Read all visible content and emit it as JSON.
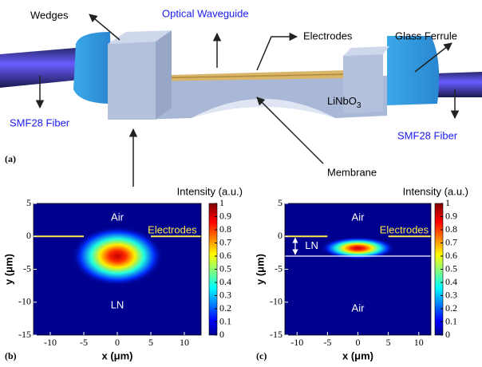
{
  "diagram": {
    "panel": "(a)",
    "labels": {
      "wedges": "Wedges",
      "waveguide": "Optical Waveguide",
      "electrodes": "Electrodes",
      "ferrule": "Glass Ferrule",
      "fiber_left": "SMF28 Fiber",
      "fiber_right": "SMF28 Fiber",
      "substrate": {
        "main": "LiNbO",
        "sub": "3"
      },
      "membrane": "Membrane"
    }
  },
  "chart_data": [
    {
      "type": "heatmap",
      "panel": "(b)",
      "xlabel": "x (μm)",
      "ylabel": "y (μm)",
      "colorbar_label": "Intensity (a.u.)",
      "xlim": [
        -12.5,
        12.5
      ],
      "ylim": [
        -15,
        5
      ],
      "xticks": [
        -10,
        -5,
        0,
        5,
        10
      ],
      "yticks": [
        -15,
        -10,
        -5,
        0,
        5
      ],
      "clim": [
        0,
        1
      ],
      "cticks": [
        0,
        0.1,
        0.2,
        0.3,
        0.4,
        0.5,
        0.6,
        0.7,
        0.8,
        0.9,
        1
      ],
      "annotations": [
        "Air",
        "Electrodes",
        "LN"
      ],
      "electrodes": {
        "y": 0,
        "gap": [
          -5,
          5
        ]
      },
      "mode": {
        "x": 0,
        "y": -3,
        "sx": 3.6,
        "sy": 2.4,
        "peak": 1
      }
    },
    {
      "type": "heatmap",
      "panel": "(c)",
      "xlabel": "x (μm)",
      "ylabel": "y (μm)",
      "colorbar_label": "Intensity (a.u.)",
      "xlim": [
        -12,
        12
      ],
      "ylim": [
        -15,
        5
      ],
      "xticks": [
        -10,
        -5,
        0,
        5,
        10
      ],
      "yticks": [
        -15,
        -10,
        -5,
        0,
        5
      ],
      "clim": [
        0,
        1
      ],
      "cticks": [
        0,
        0.1,
        0.2,
        0.3,
        0.4,
        0.5,
        0.6,
        0.7,
        0.8,
        0.9,
        1
      ],
      "annotations": [
        "Air",
        "Electrodes",
        "LN",
        "Air"
      ],
      "electrodes": {
        "y": 0,
        "gap": [
          -5,
          5
        ]
      },
      "ln_bottom": -3,
      "mode": {
        "x": 0,
        "y": -1.8,
        "sx": 3.2,
        "sy": 0.9,
        "peak": 1
      }
    }
  ]
}
